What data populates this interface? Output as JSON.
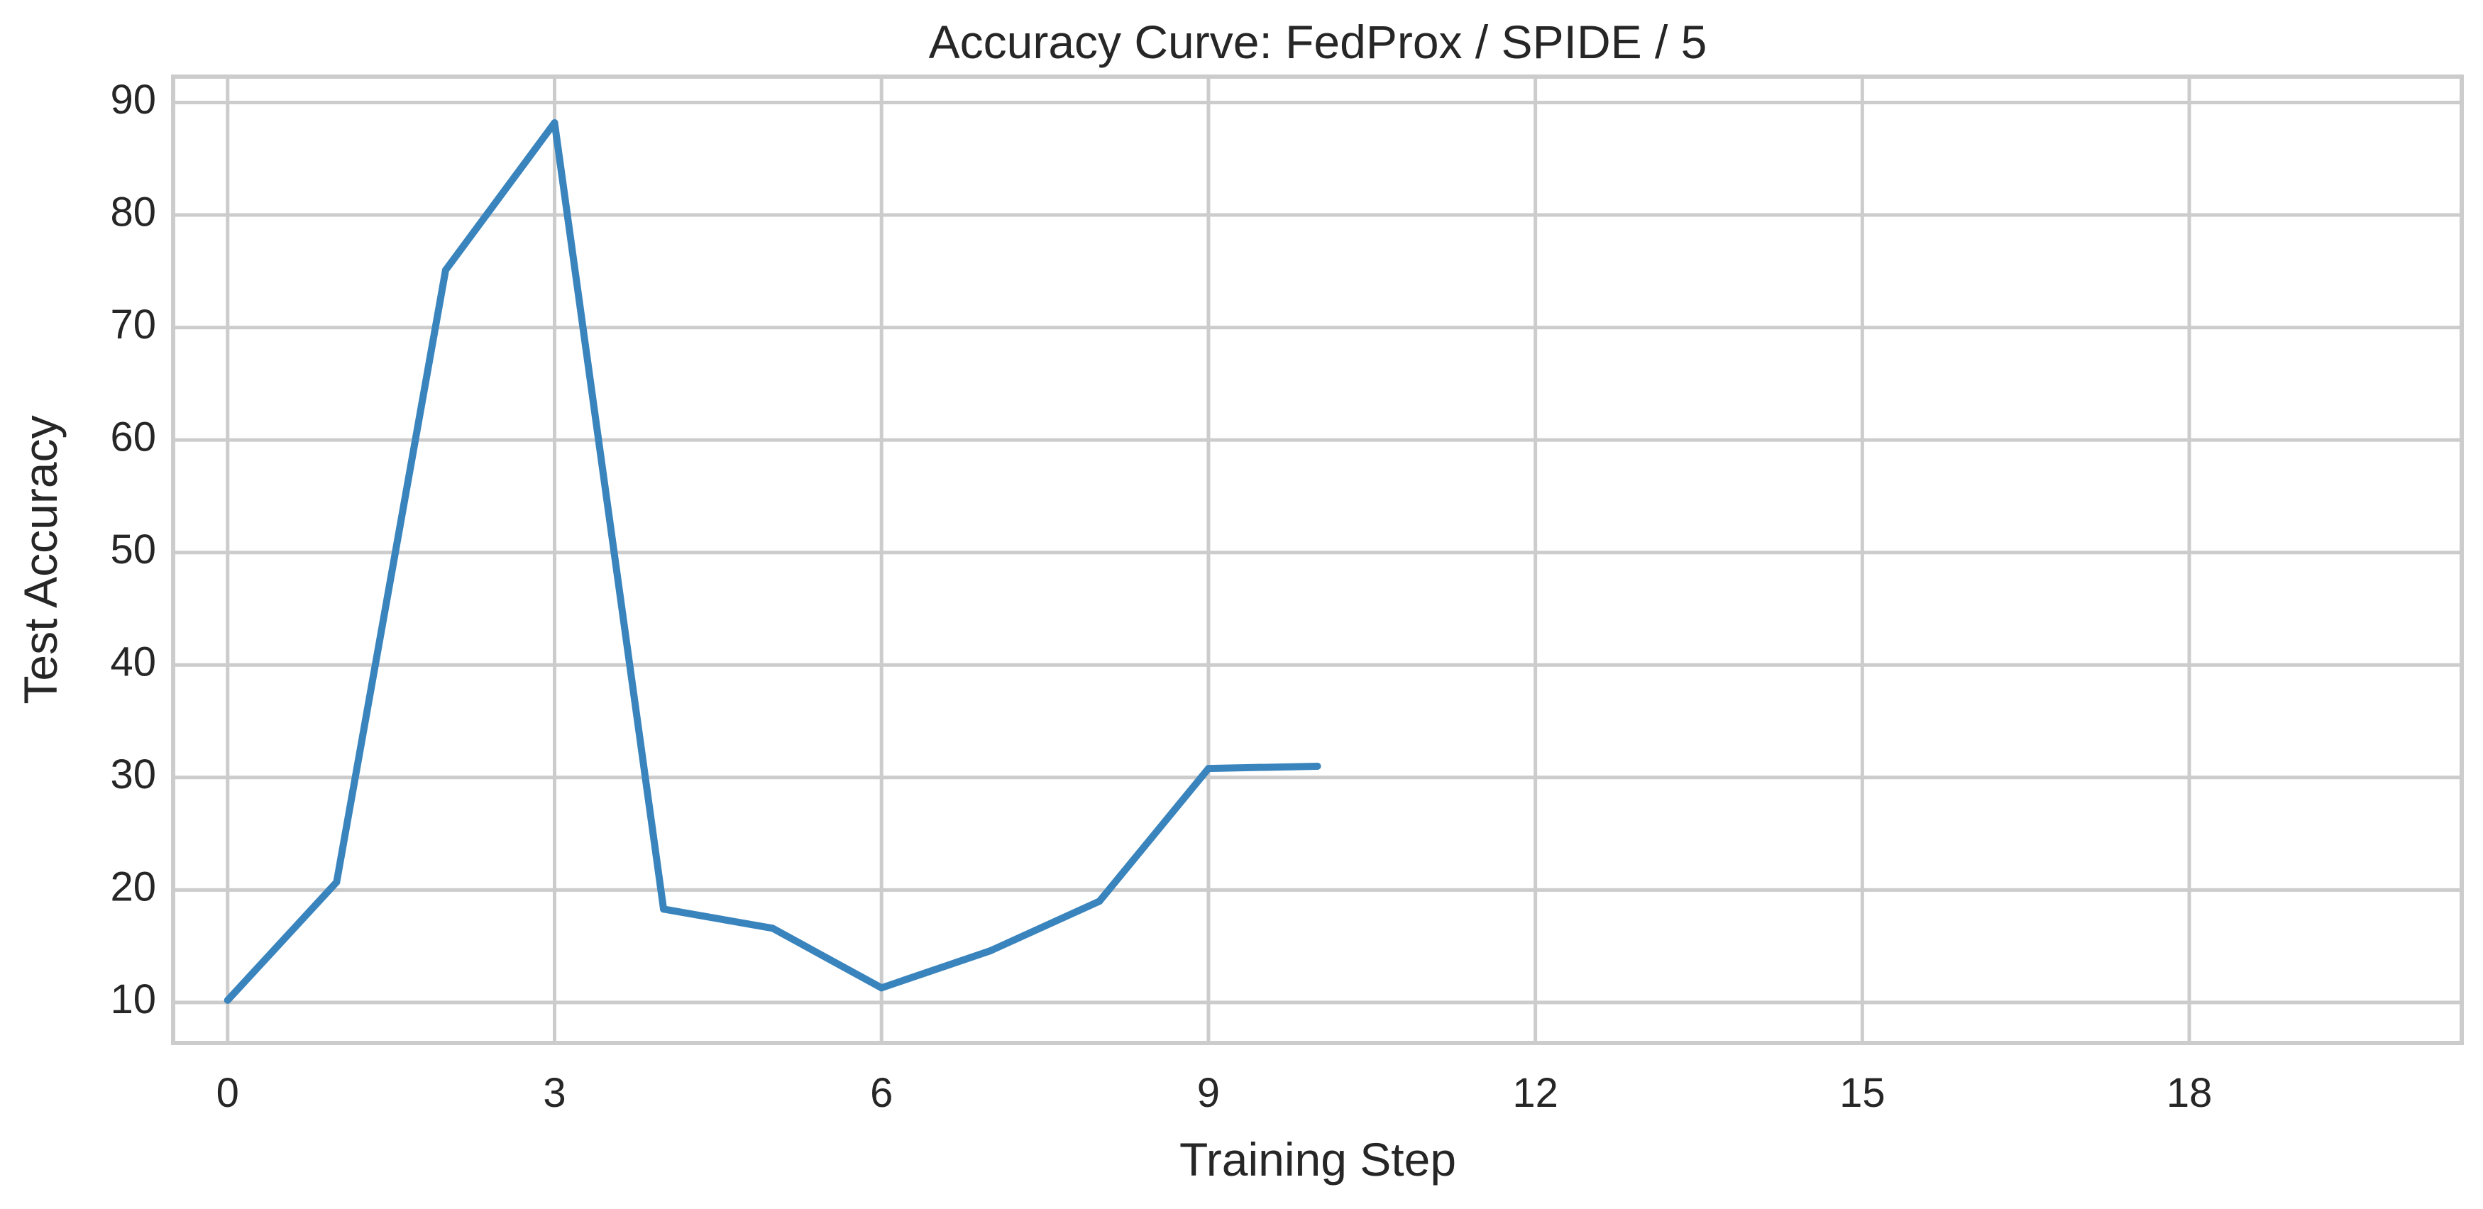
{
  "chart_data": {
    "type": "line",
    "title": "Accuracy Curve: FedProx / SPIDE / 5",
    "xlabel": "Training Step",
    "ylabel": "Test Accuracy",
    "x": [
      0,
      1,
      2,
      3,
      4,
      5,
      6,
      7,
      8,
      9,
      10
    ],
    "series": [
      {
        "values": [
          10.2,
          20.7,
          75.1,
          88.2,
          18.3,
          16.6,
          11.3,
          14.6,
          19.0,
          30.8,
          31.0
        ],
        "color": "#3a84bd"
      }
    ],
    "xlim": [
      -0.5,
      20.5
    ],
    "ylim": [
      6.4,
      92.3
    ],
    "xticks": [
      "0",
      "3",
      "6",
      "9",
      "12",
      "15",
      "18"
    ],
    "yticks": [
      "10",
      "20",
      "30",
      "40",
      "50",
      "60",
      "70",
      "80",
      "90"
    ],
    "grid": true,
    "legend": "none"
  }
}
